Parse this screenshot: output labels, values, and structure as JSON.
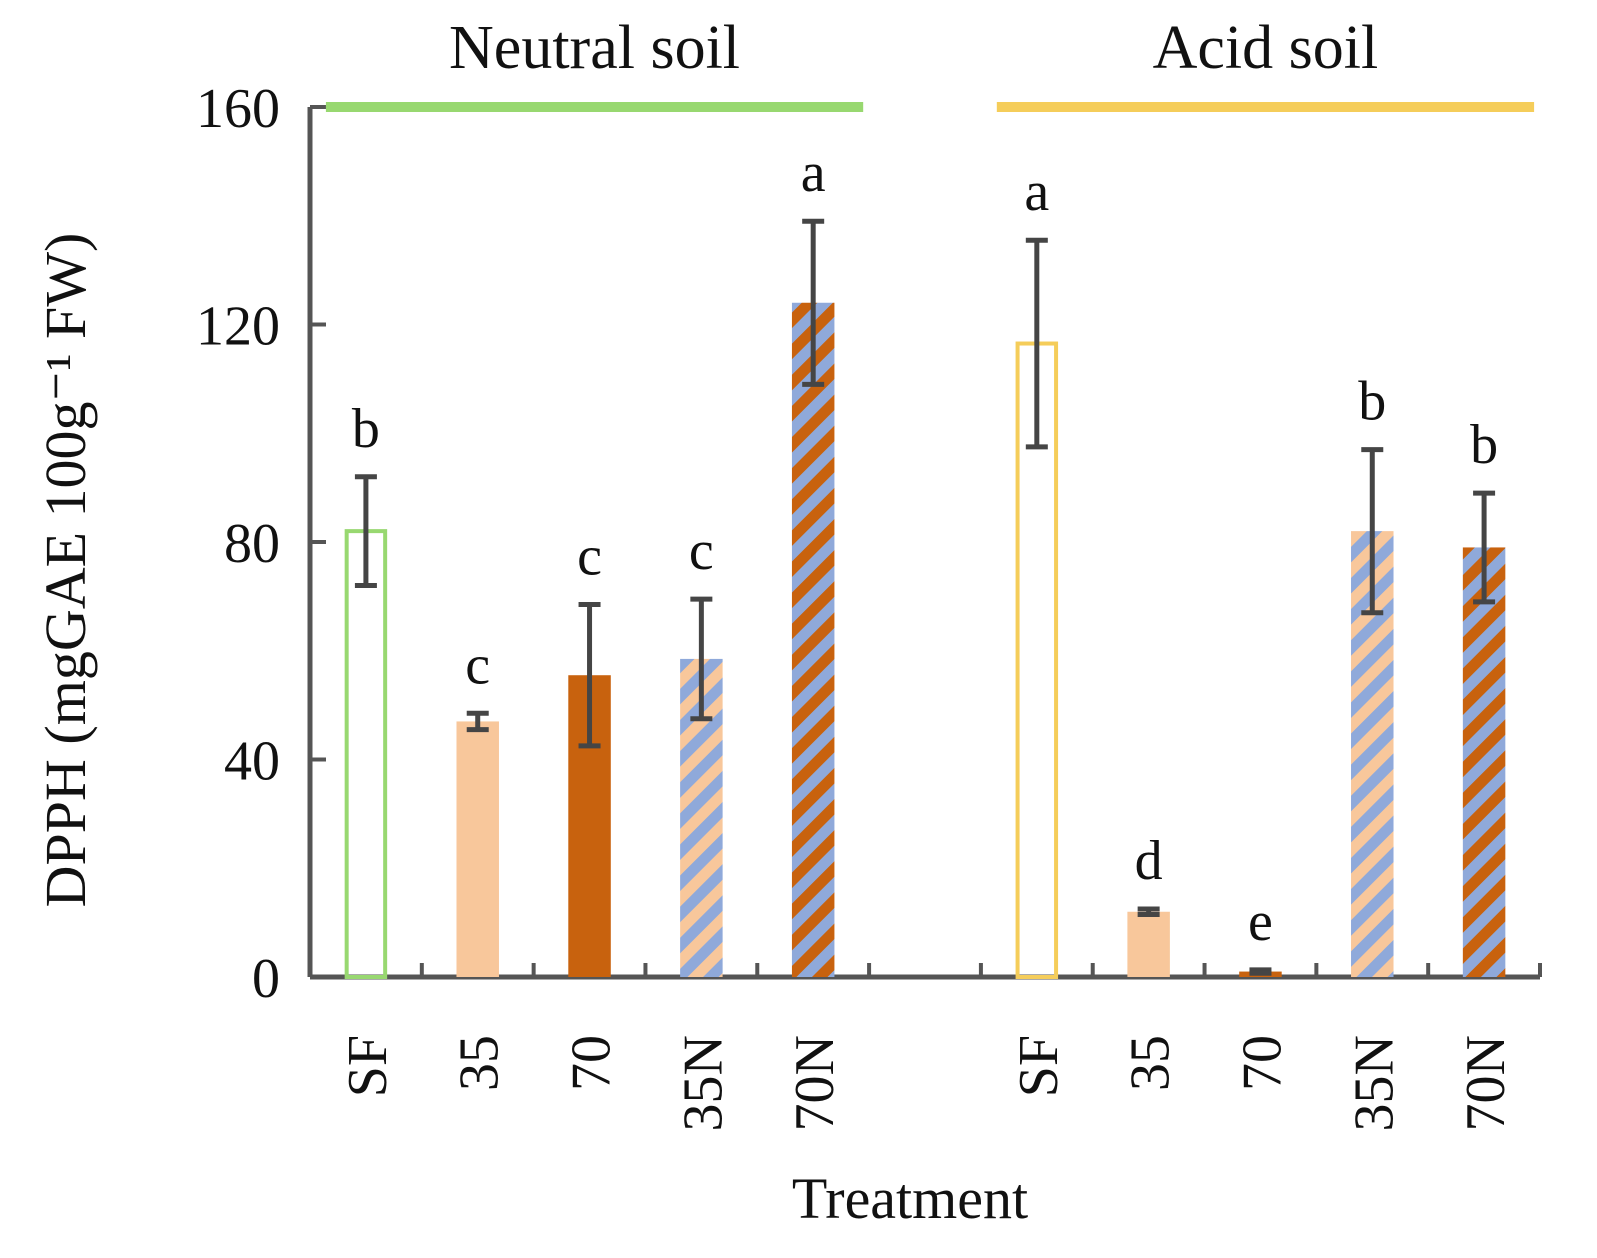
{
  "chart_data": {
    "type": "bar",
    "y_label": "DPPH  (mgGAE 100g⁻¹ FW)",
    "x_label": "Treatment",
    "categories": [
      "SF",
      "35",
      "70",
      "35N",
      "70N",
      null,
      "SF",
      "35",
      "70",
      "35N",
      "70N"
    ],
    "groups": [
      {
        "name": "Neutral soil",
        "color": "#98d870"
      },
      {
        "name": "Acid soil",
        "color": "#f5cd5a"
      }
    ],
    "values": [
      82,
      47,
      55.5,
      58.5,
      124,
      null,
      116.5,
      12,
      1,
      82,
      79
    ],
    "errors": [
      10,
      1.5,
      13,
      11,
      15,
      null,
      19,
      0.5,
      0.3,
      15,
      10
    ],
    "letters": [
      "b",
      "c",
      "c",
      "c",
      "a",
      null,
      "a",
      "d",
      "e",
      "b",
      "b"
    ],
    "fills": [
      "none",
      "#f8c79b",
      "#c8620e",
      "#f8c79b",
      "#c8620e",
      null,
      "none",
      "#f8c79b",
      "#c8620e",
      "#f8c79b",
      "#c8620e"
    ],
    "edges": [
      "#98d870",
      "#f8c79b",
      "#c8620e",
      "#f8c79b",
      "#c8620e",
      null,
      "#f5cd5a",
      "#f8c79b",
      "#c8620e",
      "#f8c79b",
      "#c8620e"
    ],
    "hatched": [
      false,
      false,
      false,
      true,
      true,
      null,
      false,
      false,
      false,
      true,
      true
    ],
    "hatch_color": "#8fa9da",
    "error_color": "#454545",
    "ylim": [
      0,
      160
    ],
    "yticks": [
      0,
      40,
      80,
      120,
      160
    ]
  }
}
